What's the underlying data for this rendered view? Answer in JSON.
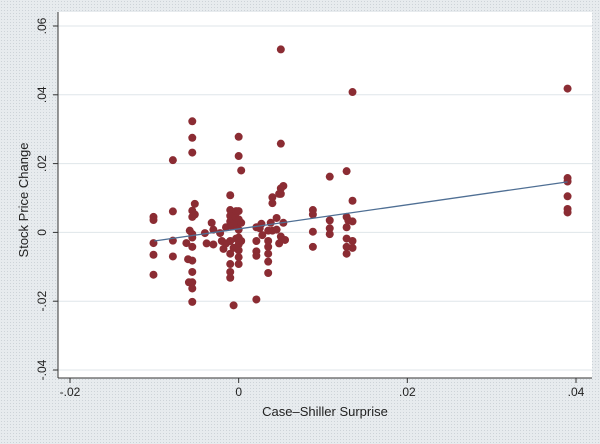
{
  "chart_data": {
    "type": "scatter",
    "title": "",
    "xlabel": "Case–Shiller Surprise",
    "ylabel": "Stock Price Change",
    "xlim": [
      -0.02,
      0.04
    ],
    "ylim": [
      -0.04,
      0.06
    ],
    "x_ticks": [
      -0.02,
      0,
      0.02,
      0.04
    ],
    "x_tick_labels": [
      "-.02",
      "0",
      ".02",
      ".04"
    ],
    "y_ticks": [
      -0.04,
      -0.02,
      0,
      0.02,
      0.04,
      0.06
    ],
    "y_tick_labels": [
      "-.04",
      "-.02",
      "0",
      ".02",
      ".04",
      ".06"
    ],
    "grid": "horizontal",
    "marker_color": "#8b2c33",
    "fit_line_color": "#4f6f94",
    "background_color": "#e7ebee",
    "plot_background_color": "#ffffff",
    "fit_line": {
      "x": [
        -0.01,
        0.039
      ],
      "y": [
        -0.0025,
        0.0147
      ]
    },
    "series": [
      {
        "points": [
          [
            -0.0101,
            0.0045
          ],
          [
            -0.0101,
            0.0036
          ],
          [
            -0.0101,
            -0.0031
          ],
          [
            -0.0101,
            -0.0065
          ],
          [
            -0.0101,
            -0.0123
          ],
          [
            -0.0078,
            0.021
          ],
          [
            -0.0078,
            0.0061
          ],
          [
            -0.0078,
            -0.0024
          ],
          [
            -0.0078,
            -0.007
          ],
          [
            -0.0062,
            -0.0031
          ],
          [
            -0.006,
            -0.0078
          ],
          [
            -0.0059,
            -0.0145
          ],
          [
            -0.0058,
            0.0005
          ],
          [
            -0.0055,
            0.0323
          ],
          [
            -0.0055,
            0.0275
          ],
          [
            -0.0055,
            0.0232
          ],
          [
            -0.0055,
            0.0063
          ],
          [
            -0.0055,
            0.0045
          ],
          [
            -0.0055,
            -0.0005
          ],
          [
            -0.0055,
            -0.0015
          ],
          [
            -0.0055,
            -0.0042
          ],
          [
            -0.0055,
            -0.0082
          ],
          [
            -0.0055,
            -0.0115
          ],
          [
            -0.0055,
            -0.0145
          ],
          [
            -0.0055,
            -0.0163
          ],
          [
            -0.0055,
            -0.0202
          ],
          [
            -0.0052,
            0.0083
          ],
          [
            -0.0052,
            0.0052
          ],
          [
            -0.004,
            -0.0002
          ],
          [
            -0.0038,
            -0.0032
          ],
          [
            -0.0032,
            0.0028
          ],
          [
            -0.003,
            0.0008
          ],
          [
            -0.003,
            -0.0035
          ],
          [
            -0.0022,
            -0.0002
          ],
          [
            -0.002,
            -0.0025
          ],
          [
            -0.0018,
            -0.0048
          ],
          [
            -0.0015,
            0.0015
          ],
          [
            -0.0015,
            -0.0032
          ],
          [
            -0.001,
            0.0108
          ],
          [
            -0.001,
            0.0065
          ],
          [
            -0.001,
            0.0048
          ],
          [
            -0.001,
            0.0032
          ],
          [
            -0.001,
            -0.0025
          ],
          [
            -0.001,
            -0.0062
          ],
          [
            -0.001,
            -0.0092
          ],
          [
            -0.001,
            -0.0115
          ],
          [
            -0.001,
            -0.0132
          ],
          [
            -0.0008,
            0.0055
          ],
          [
            -0.0008,
            0.0018
          ],
          [
            -0.0006,
            -0.0045
          ],
          [
            -0.0006,
            -0.0212
          ],
          [
            -0.0003,
            0.0062
          ],
          [
            -0.0003,
            0.0042
          ],
          [
            -0.0003,
            0.0025
          ],
          [
            -0.0003,
            -0.0018
          ],
          [
            0,
            0.0278
          ],
          [
            0,
            0.0222
          ],
          [
            0,
            0.0062
          ],
          [
            0,
            0.0038
          ],
          [
            0,
            0.0008
          ],
          [
            0,
            -0.0015
          ],
          [
            0,
            -0.0035
          ],
          [
            0,
            -0.0052
          ],
          [
            0,
            -0.0072
          ],
          [
            0,
            -0.0092
          ],
          [
            0.0003,
            0.018
          ],
          [
            0.0003,
            0.0028
          ],
          [
            0.0003,
            -0.0025
          ],
          [
            0.0021,
            -0.0195
          ],
          [
            0.0021,
            0.0015
          ],
          [
            0.0021,
            -0.0025
          ],
          [
            0.0021,
            -0.0055
          ],
          [
            0.0021,
            -0.0068
          ],
          [
            0.0025,
            0.0012
          ],
          [
            0.0027,
            0.0025
          ],
          [
            0.0028,
            -0.0008
          ],
          [
            0.0035,
            0.0005
          ],
          [
            0.0035,
            -0.0025
          ],
          [
            0.0035,
            -0.0042
          ],
          [
            0.0035,
            -0.0062
          ],
          [
            0.0035,
            -0.0085
          ],
          [
            0.0035,
            -0.0118
          ],
          [
            0.0038,
            0.0028
          ],
          [
            0.004,
            0.0102
          ],
          [
            0.004,
            0.0085
          ],
          [
            0.004,
            0.0005
          ],
          [
            0.0045,
            0.0042
          ],
          [
            0.0045,
            0.0008
          ],
          [
            0.0048,
            0.0112
          ],
          [
            0.0048,
            -0.0032
          ],
          [
            0.005,
            0.0532
          ],
          [
            0.005,
            0.0258
          ],
          [
            0.005,
            0.0128
          ],
          [
            0.005,
            0.0112
          ],
          [
            0.005,
            -0.0012
          ],
          [
            0.0053,
            0.0135
          ],
          [
            0.0053,
            0.0028
          ],
          [
            0.0055,
            -0.0022
          ],
          [
            0.0088,
            0.0065
          ],
          [
            0.0088,
            0.0052
          ],
          [
            0.0088,
            0.0002
          ],
          [
            0.0088,
            -0.0042
          ],
          [
            0.0108,
            0.0162
          ],
          [
            0.0108,
            0.0035
          ],
          [
            0.0108,
            0.0012
          ],
          [
            0.0108,
            -0.0005
          ],
          [
            0.0128,
            0.0178
          ],
          [
            0.0128,
            0.0045
          ],
          [
            0.0128,
            0.0015
          ],
          [
            0.0128,
            -0.0018
          ],
          [
            0.0128,
            -0.0042
          ],
          [
            0.0128,
            -0.0062
          ],
          [
            0.013,
            0.0035
          ],
          [
            0.0135,
            0.0408
          ],
          [
            0.0135,
            0.0092
          ],
          [
            0.0135,
            0.0032
          ],
          [
            0.0135,
            -0.0025
          ],
          [
            0.0135,
            -0.0045
          ],
          [
            0.039,
            0.0418
          ],
          [
            0.039,
            0.0158
          ],
          [
            0.039,
            0.0148
          ],
          [
            0.039,
            0.0105
          ],
          [
            0.039,
            0.0068
          ],
          [
            0.039,
            0.0058
          ]
        ]
      }
    ]
  }
}
